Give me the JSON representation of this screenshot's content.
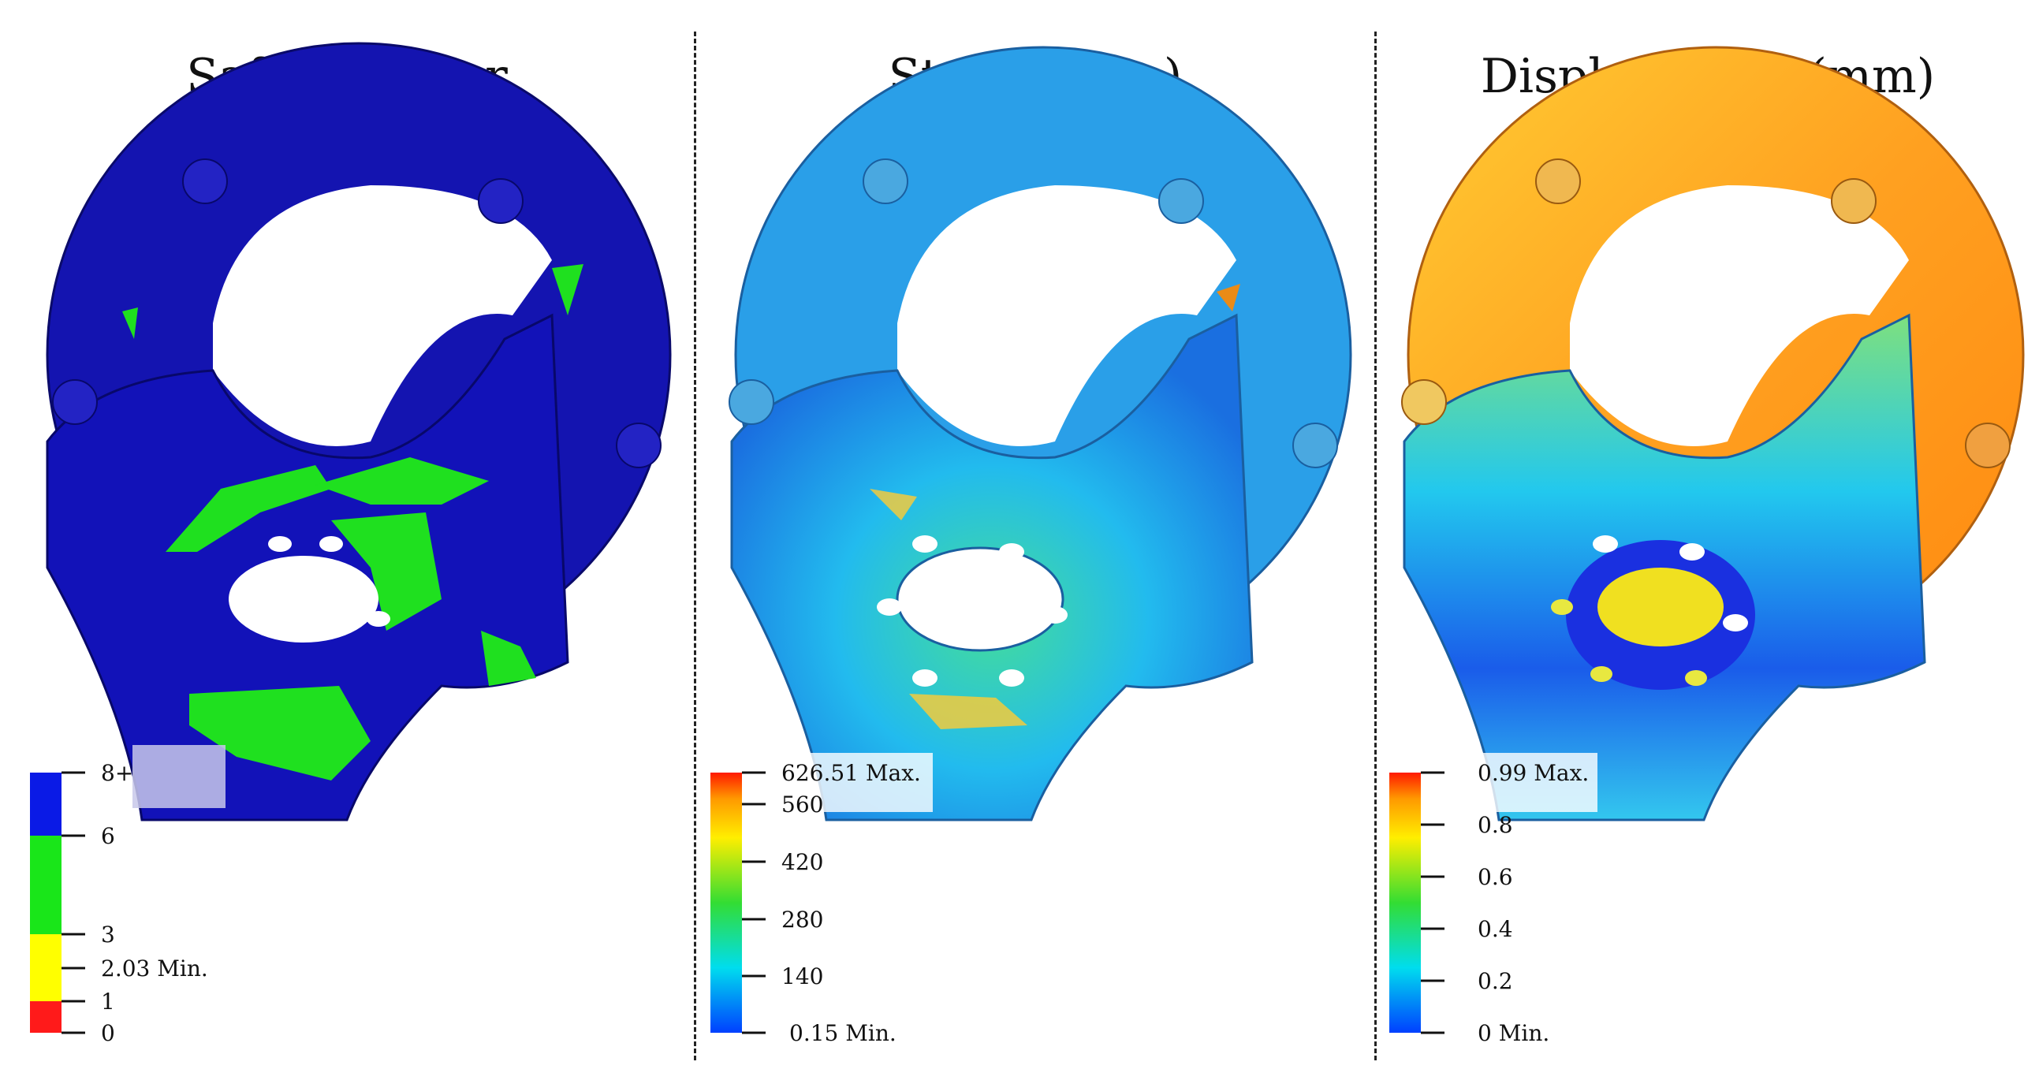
{
  "panels": [
    {
      "title": "Safety Factor",
      "legend": {
        "type": "discrete",
        "bands": [
          {
            "from": 0,
            "to": 1,
            "color": "#ff1a1a"
          },
          {
            "from": 1,
            "to": 2.03,
            "color": "#ffff00"
          },
          {
            "from": 2.03,
            "to": 3,
            "color": "#ffff00"
          },
          {
            "from": 3,
            "to": 6,
            "color": "#19e619"
          },
          {
            "from": 6,
            "to": 8,
            "color": "#0a1ae6"
          }
        ],
        "ticks": [
          "8+",
          "6",
          "3",
          "2.03 Min.",
          "1",
          "0"
        ]
      },
      "colors": {
        "body": "#1a1ab4",
        "highlight": "#1fe01f"
      }
    },
    {
      "title": "Stress(MPa)",
      "legend": {
        "type": "gradient",
        "ticks": [
          "626.51 Max.",
          "560",
          "420",
          "280",
          "140",
          "0.15 Min."
        ],
        "colors": [
          "#ff1a00",
          "#ff9900",
          "#ffee00",
          "#33dd33",
          "#00ddee",
          "#0040ff"
        ]
      }
    },
    {
      "title": "Displacement(mm)",
      "legend": {
        "type": "gradient",
        "ticks": [
          "0.99 Max.",
          "0.8",
          "0.6",
          "0.4",
          "0.2",
          "0 Min."
        ],
        "colors": [
          "#ff1a00",
          "#ff9900",
          "#ffee00",
          "#33dd33",
          "#00ddee",
          "#0040ff"
        ]
      }
    }
  ]
}
